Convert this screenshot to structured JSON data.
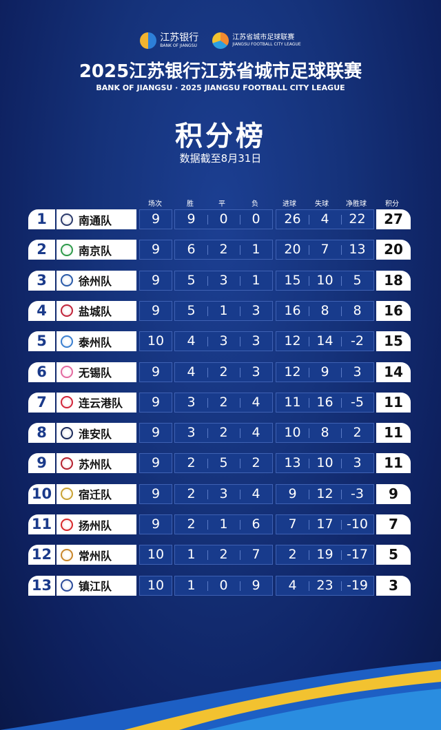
{
  "header": {
    "bank_logo_cn": "江苏银行",
    "bank_logo_en": "BANK OF JIANGSU",
    "league_logo_cn": "江苏省城市足球联赛",
    "league_logo_en": "JIANGSU FOOTBALL CITY LEAGUE",
    "title": "2025江苏银行江苏省城市足球联赛",
    "subtitle": "BANK OF JIANGSU · 2025 JIANGSU FOOTBALL CITY LEAGUE",
    "board_title": "积分榜",
    "date_note": "数据截至8月31日"
  },
  "columns": [
    "场次",
    "胜",
    "平",
    "负",
    "进球",
    "失球",
    "净胜球",
    "积分"
  ],
  "colors": {
    "background": "#15327a",
    "accent_yellow": "#f2c230",
    "rank_text": "#1a3a8a"
  },
  "rows": [
    {
      "rank": "1",
      "team": "南通队",
      "badge_color": "#2b3a6b",
      "played": "9",
      "won": "9",
      "drawn": "0",
      "lost": "0",
      "gf": "26",
      "ga": "4",
      "gd": "22",
      "pts": "27"
    },
    {
      "rank": "2",
      "team": "南京队",
      "badge_color": "#2e9a4a",
      "played": "9",
      "won": "6",
      "drawn": "2",
      "lost": "1",
      "gf": "20",
      "ga": "7",
      "gd": "13",
      "pts": "20"
    },
    {
      "rank": "3",
      "team": "徐州队",
      "badge_color": "#2a5aa8",
      "played": "9",
      "won": "5",
      "drawn": "3",
      "lost": "1",
      "gf": "15",
      "ga": "10",
      "gd": "5",
      "pts": "18"
    },
    {
      "rank": "4",
      "team": "盐城队",
      "badge_color": "#c0243a",
      "played": "9",
      "won": "5",
      "drawn": "1",
      "lost": "3",
      "gf": "16",
      "ga": "8",
      "gd": "8",
      "pts": "16"
    },
    {
      "rank": "5",
      "team": "泰州队",
      "badge_color": "#3a7fd0",
      "played": "10",
      "won": "4",
      "drawn": "3",
      "lost": "3",
      "gf": "12",
      "ga": "14",
      "gd": "-2",
      "pts": "15"
    },
    {
      "rank": "6",
      "team": "无锡队",
      "badge_color": "#e36aa0",
      "played": "9",
      "won": "4",
      "drawn": "2",
      "lost": "3",
      "gf": "12",
      "ga": "9",
      "gd": "3",
      "pts": "14"
    },
    {
      "rank": "7",
      "team": "连云港队",
      "badge_color": "#d2243a",
      "played": "9",
      "won": "3",
      "drawn": "2",
      "lost": "4",
      "gf": "11",
      "ga": "16",
      "gd": "-5",
      "pts": "11"
    },
    {
      "rank": "8",
      "team": "淮安队",
      "badge_color": "#1a2a5a",
      "played": "9",
      "won": "3",
      "drawn": "2",
      "lost": "4",
      "gf": "10",
      "ga": "8",
      "gd": "2",
      "pts": "11"
    },
    {
      "rank": "9",
      "team": "苏州队",
      "badge_color": "#b5202e",
      "played": "9",
      "won": "2",
      "drawn": "5",
      "lost": "2",
      "gf": "13",
      "ga": "10",
      "gd": "3",
      "pts": "11"
    },
    {
      "rank": "10",
      "team": "宿迁队",
      "badge_color": "#c9a233",
      "played": "9",
      "won": "2",
      "drawn": "3",
      "lost": "4",
      "gf": "9",
      "ga": "12",
      "gd": "-3",
      "pts": "9"
    },
    {
      "rank": "11",
      "team": "扬州队",
      "badge_color": "#d8282a",
      "played": "9",
      "won": "2",
      "drawn": "1",
      "lost": "6",
      "gf": "7",
      "ga": "17",
      "gd": "-10",
      "pts": "7"
    },
    {
      "rank": "12",
      "team": "常州队",
      "badge_color": "#c8862a",
      "played": "10",
      "won": "1",
      "drawn": "2",
      "lost": "7",
      "gf": "2",
      "ga": "19",
      "gd": "-17",
      "pts": "5"
    },
    {
      "rank": "13",
      "team": "镇江队",
      "badge_color": "#2a4a9a",
      "played": "10",
      "won": "1",
      "drawn": "0",
      "lost": "9",
      "gf": "4",
      "ga": "23",
      "gd": "-19",
      "pts": "3"
    }
  ]
}
